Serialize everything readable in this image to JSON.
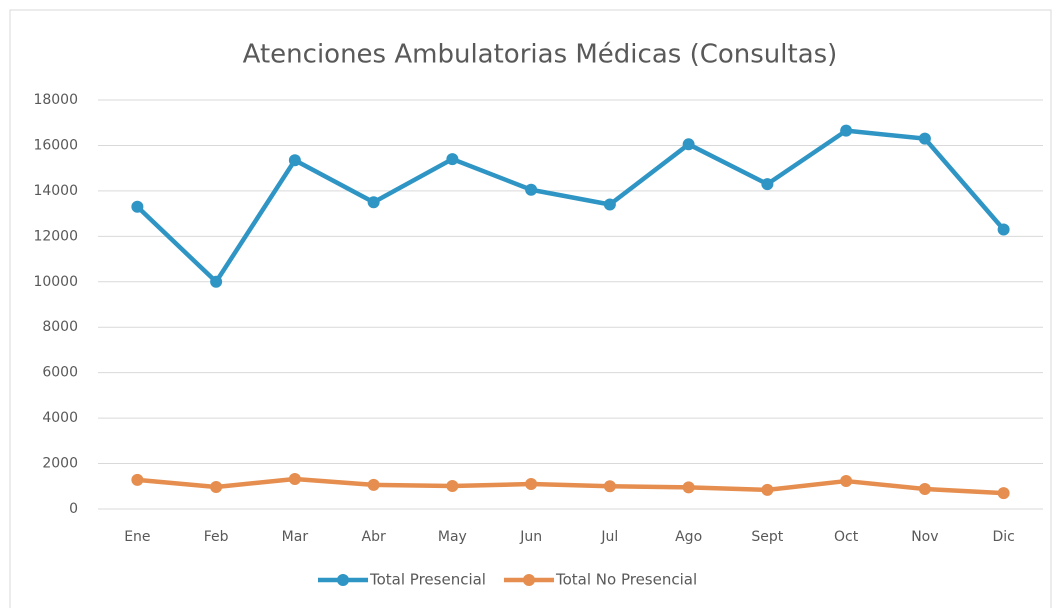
{
  "chart_data": {
    "type": "line",
    "title": "Atenciones Ambulatorias Médicas (Consultas)",
    "categories": [
      "Ene",
      "Feb",
      "Mar",
      "Abr",
      "May",
      "Jun",
      "Jul",
      "Ago",
      "Sept",
      "Oct",
      "Nov",
      "Dic"
    ],
    "series": [
      {
        "name": "Total Presencial",
        "color": "#2e95c4",
        "values": [
          13300,
          10000,
          15350,
          13500,
          15400,
          14050,
          13400,
          16050,
          14300,
          16650,
          16300,
          12300
        ]
      },
      {
        "name": "Total No Presencial",
        "color": "#e58e4f",
        "values": [
          1280,
          970,
          1320,
          1060,
          1010,
          1100,
          1000,
          950,
          840,
          1230,
          880,
          700
        ]
      }
    ],
    "ylim": [
      0,
      18000
    ],
    "yticks": [
      0,
      2000,
      4000,
      6000,
      8000,
      10000,
      12000,
      14000,
      16000,
      18000
    ],
    "grid": true,
    "legend": "bottom"
  }
}
